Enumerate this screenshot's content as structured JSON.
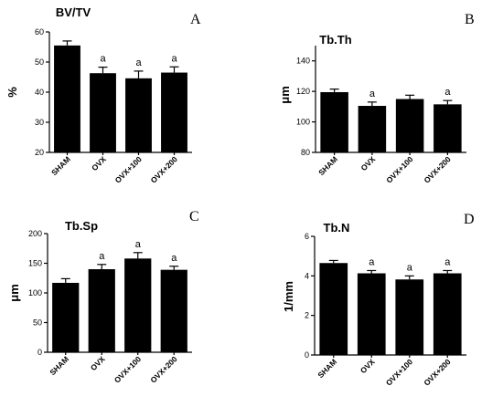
{
  "chart_data": [
    {
      "type": "bar",
      "title": "BV/TV",
      "panel_label": "A",
      "ylabel": "%",
      "ylim": [
        20,
        60
      ],
      "yticks": [
        20,
        30,
        40,
        50,
        60
      ],
      "categories": [
        "SHAM",
        "OVX",
        "OVX+100",
        "OVX+200"
      ],
      "values": [
        55.5,
        46.3,
        44.6,
        46.5
      ],
      "errors": [
        1.5,
        2.0,
        2.4,
        1.9
      ],
      "annotations": [
        "",
        "a",
        "a",
        "a"
      ]
    },
    {
      "type": "bar",
      "title": "Tb.Th",
      "panel_label": "B",
      "ylabel": "μm",
      "ylim": [
        80,
        150
      ],
      "yticks": [
        80,
        100,
        120,
        140
      ],
      "categories": [
        "SHAM",
        "OVX",
        "OVX+100",
        "OVX+200"
      ],
      "values": [
        119.5,
        110.5,
        115.0,
        111.5
      ],
      "errors": [
        2.0,
        2.5,
        2.5,
        2.5
      ],
      "annotations": [
        "",
        "a",
        "",
        "a"
      ]
    },
    {
      "type": "bar",
      "title": "Tb.Sp",
      "panel_label": "C",
      "ylabel": "μm",
      "ylim": [
        0,
        200
      ],
      "yticks": [
        0,
        50,
        100,
        150,
        200
      ],
      "categories": [
        "SHAM",
        "OVX",
        "OVX+100",
        "OVX+200"
      ],
      "values": [
        117,
        140,
        158,
        139
      ],
      "errors": [
        7,
        8,
        10,
        6
      ],
      "annotations": [
        "",
        "a",
        "a",
        "a"
      ]
    },
    {
      "type": "bar",
      "title": "Tb.N",
      "panel_label": "D",
      "ylabel": "1/mm",
      "ylim": [
        0,
        6
      ],
      "yticks": [
        0,
        2,
        4,
        6
      ],
      "categories": [
        "SHAM",
        "OVX",
        "OVX+100",
        "OVX+200"
      ],
      "values": [
        4.65,
        4.13,
        3.82,
        4.13
      ],
      "errors": [
        0.13,
        0.14,
        0.18,
        0.14
      ],
      "annotations": [
        "",
        "a",
        "a",
        "a"
      ]
    }
  ]
}
